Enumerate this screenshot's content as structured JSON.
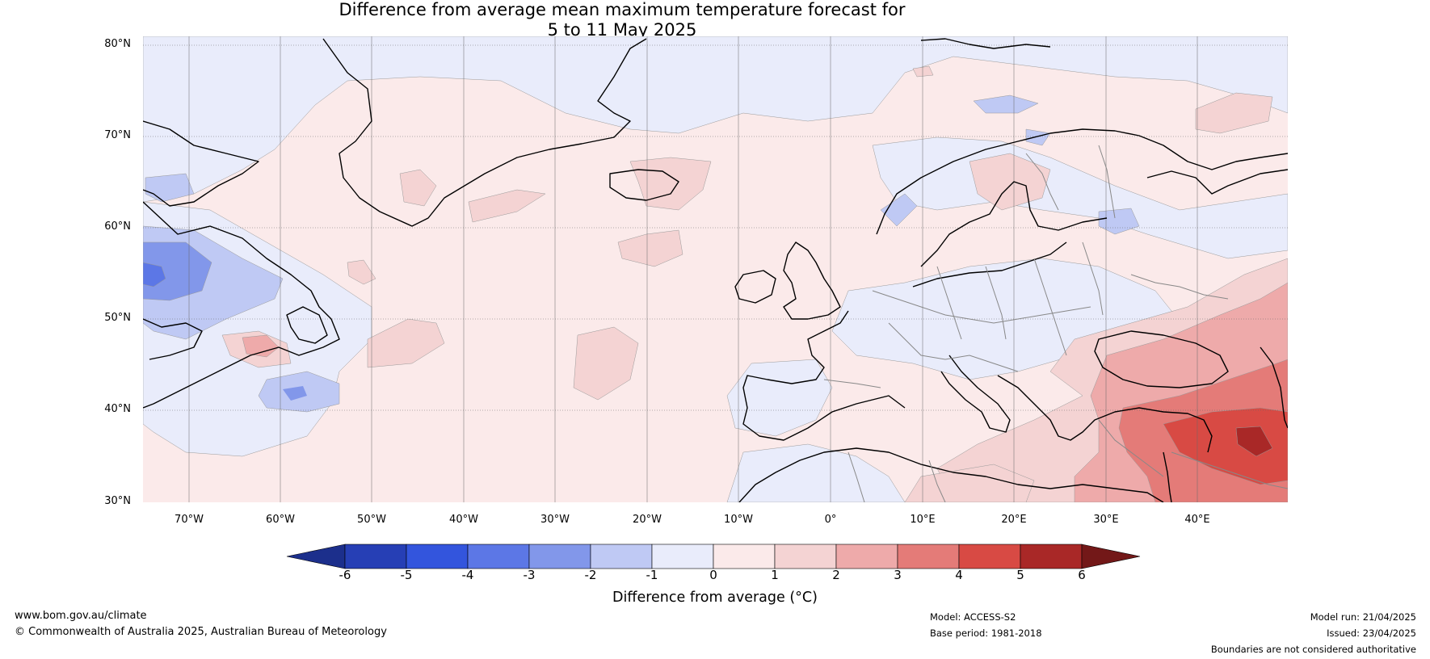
{
  "title_line1": "Difference from average mean maximum temperature forecast for",
  "title_line2": "5 to 11 May 2025",
  "lat_labels": [
    "80°N",
    "70°N",
    "60°N",
    "50°N",
    "40°N",
    "30°N"
  ],
  "lon_labels": [
    "70°W",
    "60°W",
    "50°W",
    "40°W",
    "30°W",
    "20°W",
    "10°W",
    "0°",
    "10°E",
    "20°E",
    "30°E",
    "40°E"
  ],
  "colorbar": {
    "ticks": [
      "-6",
      "-5",
      "-4",
      "-3",
      "-2",
      "-1",
      "0",
      "1",
      "2",
      "3",
      "4",
      "5",
      "6"
    ],
    "colors": [
      "#1c2f8c",
      "#263fb5",
      "#3355dd",
      "#5c77e6",
      "#8297ea",
      "#bfc9f4",
      "#e9ecfb",
      "#fbeaea",
      "#f4d3d3",
      "#eeaaaa",
      "#e47b78",
      "#d84a44",
      "#a92827",
      "#731818"
    ],
    "label": "Difference from average (°C)"
  },
  "map_colors": {
    "ocean_base": "#fbeaea",
    "land_near_zero_cool": "#e9ecfb",
    "cool_1": "#bfc9f4",
    "cool_2": "#8297ea",
    "cool_3": "#5c77e6",
    "warm_1": "#f4d3d3",
    "warm_2": "#eeaaaa",
    "warm_3": "#e47b78",
    "warm_4": "#d84a44",
    "warm_5": "#a92827"
  },
  "footer": {
    "website": "www.bom.gov.au/climate",
    "copyright": "© Commonwealth of Australia 2025, Australian Bureau of Meteorology",
    "model": "Model: ACCESS-S2",
    "base_period": "Base period: 1981-2018",
    "model_run": "Model run: 21/04/2025",
    "issued": "Issued: 23/04/2025",
    "disclaimer": "Boundaries are not considered authoritative"
  }
}
